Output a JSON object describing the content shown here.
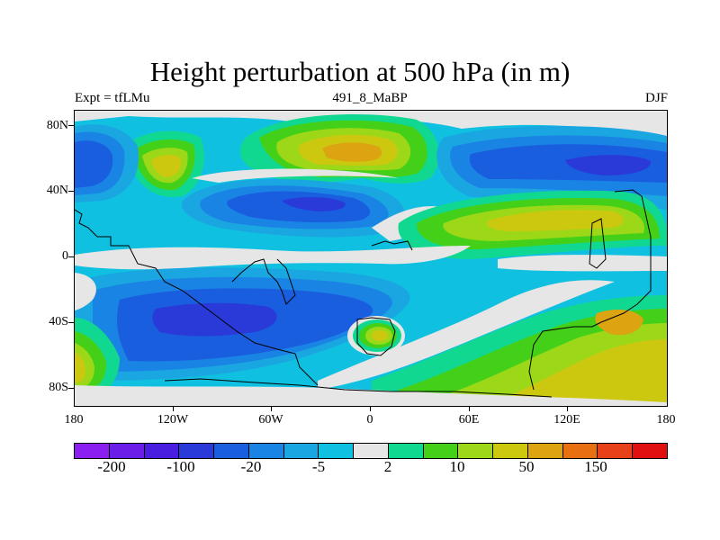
{
  "title": "Height perturbation at 500 hPa (in m)",
  "subtitle_left": "Expt = tfLMu",
  "subtitle_center": "491_8_MaBP",
  "subtitle_right": "DJF",
  "lat_labels": [
    "80N",
    "40N",
    "0",
    "40S",
    "80S"
  ],
  "lon_labels": [
    "180",
    "120W",
    "60W",
    "0",
    "60E",
    "120E",
    "180"
  ],
  "colorbar": {
    "colors": [
      "#8b1ef0",
      "#6a1ee8",
      "#4a1ee0",
      "#2a3ad8",
      "#1a5ee0",
      "#1a84e4",
      "#1aa6e0",
      "#10c0e0",
      "#e6e6e6",
      "#10d890",
      "#44d018",
      "#9cd818",
      "#ccc810",
      "#dca410",
      "#e87010",
      "#e84018",
      "#e01010"
    ],
    "labels": [
      "-200",
      "-100",
      "-20",
      "-5",
      "2",
      "10",
      "50",
      "150"
    ]
  },
  "colors": {
    "neutral": "#e6e6e6",
    "cyan": "#10c0e0",
    "light_blue": "#1aa6e0",
    "blue": "#1a84e4",
    "dark_blue": "#1a5ee0",
    "deep_blue": "#2a3ad8",
    "teal_green": "#10d890",
    "green": "#44d018",
    "yellow_green": "#9cd818",
    "yellow": "#ccc810",
    "orange": "#dca410"
  }
}
